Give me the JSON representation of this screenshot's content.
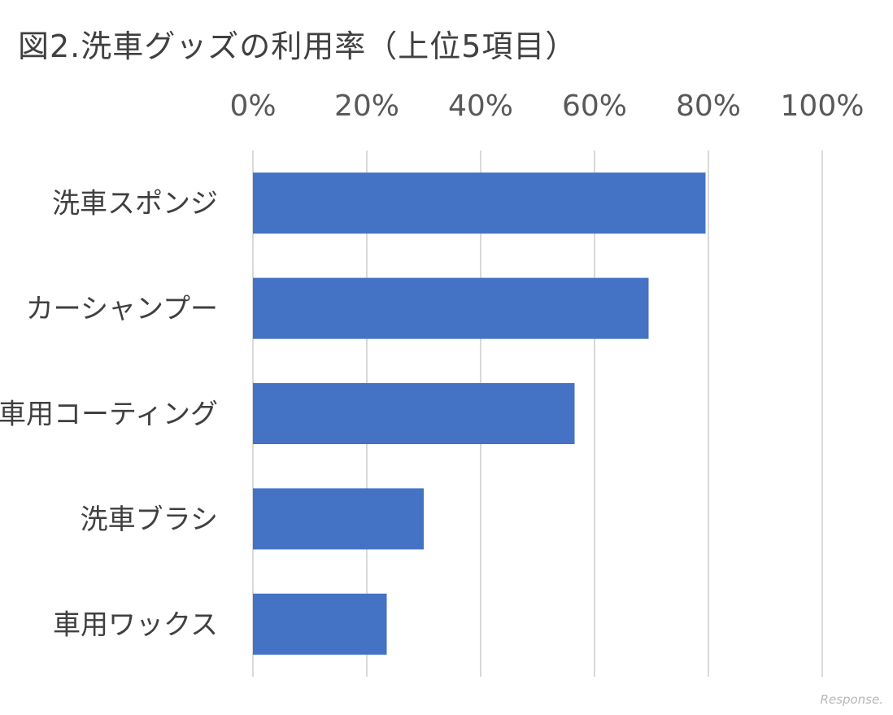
{
  "title": "図2.洗車グッズの利用率（上位5項目）",
  "watermark": "Response.",
  "colors": {
    "bar": "#4472C4",
    "grid": "#d9d9d9",
    "text": "#404040"
  },
  "chart_data": {
    "type": "bar",
    "orientation": "horizontal",
    "title": "図2.洗車グッズの利用率（上位5項目）",
    "categories": [
      "洗車スポンジ",
      "カーシャンプー",
      "車用コーティング",
      "洗車ブラシ",
      "車用ワックス"
    ],
    "values": [
      79.5,
      69.5,
      56.5,
      30,
      23.5
    ],
    "xlim": [
      0,
      100
    ],
    "xticks": [
      "0%",
      "20%",
      "40%",
      "60%",
      "80%",
      "100%"
    ],
    "x_axis_position": "top",
    "grid": true,
    "legend": "none"
  }
}
